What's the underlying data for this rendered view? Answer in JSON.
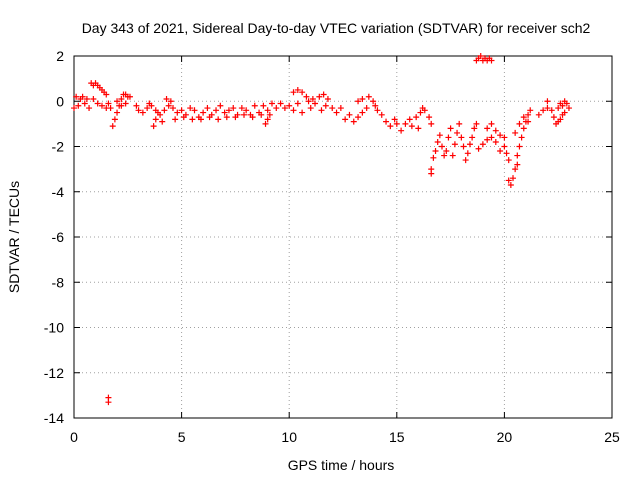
{
  "chart_data": {
    "type": "scatter",
    "title": "Day 343 of 2021, Sidereal Day-to-day VTEC variation (SDTVAR) for receiver sch2",
    "xlabel": "GPS time / hours",
    "ylabel": "SDTVAR / TECUs",
    "xlim": [
      0,
      25
    ],
    "ylim": [
      -14,
      2
    ],
    "xticks": [
      0,
      5,
      10,
      15,
      20,
      25
    ],
    "xtick_labels": [
      "0",
      "5",
      "10",
      "15",
      "20",
      "25"
    ],
    "yticks": [
      2,
      0,
      -2,
      -4,
      -6,
      -8,
      -10,
      -12,
      -14
    ],
    "ytick_labels": [
      "2",
      "0",
      "-2",
      "-4",
      "-6",
      "-8",
      "-10",
      "-12",
      "-14"
    ],
    "grid": true,
    "legend": "none",
    "series": [
      {
        "name": "SDTVAR",
        "marker": "plus",
        "color": "#ff0000",
        "points": [
          [
            0.0,
            -0.3
          ],
          [
            0.1,
            0.2
          ],
          [
            0.2,
            -0.2
          ],
          [
            0.3,
            0.1
          ],
          [
            0.4,
            0.2
          ],
          [
            0.5,
            -0.1
          ],
          [
            0.6,
            0.1
          ],
          [
            0.7,
            -0.3
          ],
          [
            0.8,
            0.8
          ],
          [
            0.9,
            0.7
          ],
          [
            1.0,
            0.8
          ],
          [
            1.1,
            0.7
          ],
          [
            1.2,
            0.6
          ],
          [
            1.3,
            0.5
          ],
          [
            1.4,
            0.4
          ],
          [
            1.5,
            0.3
          ],
          [
            0.9,
            0.1
          ],
          [
            1.1,
            -0.1
          ],
          [
            1.3,
            -0.2
          ],
          [
            1.5,
            -0.3
          ],
          [
            1.6,
            -0.1
          ],
          [
            1.7,
            -0.3
          ],
          [
            1.8,
            -1.1
          ],
          [
            1.9,
            -0.8
          ],
          [
            2.0,
            -0.5
          ],
          [
            2.1,
            -0.2
          ],
          [
            2.2,
            0.1
          ],
          [
            2.3,
            0.3
          ],
          [
            2.4,
            0.3
          ],
          [
            2.5,
            0.2
          ],
          [
            2.6,
            0.2
          ],
          [
            2.0,
            0.0
          ],
          [
            2.2,
            -0.2
          ],
          [
            2.4,
            -0.1
          ],
          [
            1.6,
            -13.1
          ],
          [
            1.6,
            -13.3
          ],
          [
            2.9,
            -0.2
          ],
          [
            3.0,
            -0.4
          ],
          [
            3.2,
            -0.5
          ],
          [
            3.4,
            -0.3
          ],
          [
            3.5,
            -0.1
          ],
          [
            3.6,
            -0.2
          ],
          [
            3.8,
            -0.4
          ],
          [
            3.7,
            -1.1
          ],
          [
            3.8,
            -0.8
          ],
          [
            3.9,
            -0.5
          ],
          [
            4.0,
            -0.6
          ],
          [
            4.1,
            -0.9
          ],
          [
            4.2,
            -0.4
          ],
          [
            4.3,
            0.1
          ],
          [
            4.4,
            -0.2
          ],
          [
            4.5,
            0.0
          ],
          [
            4.6,
            -0.3
          ],
          [
            4.8,
            -0.5
          ],
          [
            5.0,
            -0.4
          ],
          [
            5.2,
            -0.6
          ],
          [
            5.4,
            -0.3
          ],
          [
            5.6,
            -0.4
          ],
          [
            5.8,
            -0.7
          ],
          [
            6.0,
            -0.5
          ],
          [
            6.2,
            -0.3
          ],
          [
            6.4,
            -0.6
          ],
          [
            6.6,
            -0.4
          ],
          [
            4.7,
            -0.8
          ],
          [
            5.1,
            -0.7
          ],
          [
            5.5,
            -0.8
          ],
          [
            5.9,
            -0.8
          ],
          [
            6.3,
            -0.7
          ],
          [
            6.7,
            -0.8
          ],
          [
            6.8,
            -0.2
          ],
          [
            7.0,
            -0.5
          ],
          [
            7.2,
            -0.4
          ],
          [
            7.4,
            -0.3
          ],
          [
            7.6,
            -0.6
          ],
          [
            7.8,
            -0.3
          ],
          [
            8.0,
            -0.4
          ],
          [
            8.2,
            -0.6
          ],
          [
            8.4,
            -0.2
          ],
          [
            8.6,
            -0.5
          ],
          [
            8.8,
            -0.2
          ],
          [
            9.0,
            -0.4
          ],
          [
            9.2,
            -0.1
          ],
          [
            9.4,
            -0.3
          ],
          [
            7.1,
            -0.7
          ],
          [
            7.5,
            -0.7
          ],
          [
            7.9,
            -0.6
          ],
          [
            8.3,
            -0.7
          ],
          [
            8.7,
            -0.6
          ],
          [
            9.1,
            -0.6
          ],
          [
            8.9,
            -1.0
          ],
          [
            9.0,
            -0.8
          ],
          [
            9.6,
            -0.1
          ],
          [
            9.8,
            -0.3
          ],
          [
            10.0,
            -0.2
          ],
          [
            10.2,
            -0.4
          ],
          [
            10.4,
            -0.1
          ],
          [
            10.6,
            -0.5
          ],
          [
            10.2,
            0.4
          ],
          [
            10.4,
            0.5
          ],
          [
            10.6,
            0.4
          ],
          [
            10.8,
            0.2
          ],
          [
            10.9,
            0.0
          ],
          [
            11.0,
            -0.3
          ],
          [
            11.1,
            0.1
          ],
          [
            11.2,
            -0.1
          ],
          [
            11.4,
            0.2
          ],
          [
            11.6,
            0.3
          ],
          [
            11.8,
            0.1
          ],
          [
            11.5,
            -0.4
          ],
          [
            11.7,
            -0.2
          ],
          [
            12.0,
            -0.3
          ],
          [
            12.2,
            -0.5
          ],
          [
            12.4,
            -0.3
          ],
          [
            12.6,
            -0.8
          ],
          [
            12.8,
            -0.6
          ],
          [
            13.0,
            -0.9
          ],
          [
            13.2,
            -0.7
          ],
          [
            13.4,
            -0.5
          ],
          [
            13.6,
            -0.3
          ],
          [
            13.2,
            0.0
          ],
          [
            13.4,
            0.1
          ],
          [
            13.7,
            0.2
          ],
          [
            13.9,
            0.0
          ],
          [
            14.0,
            -0.2
          ],
          [
            14.1,
            -0.4
          ],
          [
            14.3,
            -0.6
          ],
          [
            14.5,
            -0.9
          ],
          [
            14.7,
            -1.1
          ],
          [
            14.9,
            -0.8
          ],
          [
            15.0,
            -1.0
          ],
          [
            15.2,
            -1.3
          ],
          [
            15.4,
            -1.0
          ],
          [
            15.6,
            -0.8
          ],
          [
            15.7,
            -1.1
          ],
          [
            15.9,
            -0.7
          ],
          [
            16.0,
            -1.2
          ],
          [
            16.1,
            -0.5
          ],
          [
            16.2,
            -0.3
          ],
          [
            16.3,
            -0.4
          ],
          [
            16.5,
            -0.7
          ],
          [
            16.6,
            -1.0
          ],
          [
            16.6,
            -3.2
          ],
          [
            16.6,
            -3.0
          ],
          [
            16.7,
            -2.5
          ],
          [
            16.8,
            -2.2
          ],
          [
            16.9,
            -1.8
          ],
          [
            17.0,
            -1.5
          ],
          [
            17.1,
            -2.0
          ],
          [
            17.2,
            -2.4
          ],
          [
            17.3,
            -2.2
          ],
          [
            17.4,
            -1.6
          ],
          [
            17.5,
            -1.2
          ],
          [
            17.6,
            -2.4
          ],
          [
            17.7,
            -1.9
          ],
          [
            17.8,
            -1.4
          ],
          [
            17.9,
            -1.0
          ],
          [
            18.0,
            -1.6
          ],
          [
            18.1,
            -2.0
          ],
          [
            18.2,
            -2.6
          ],
          [
            18.3,
            -2.3
          ],
          [
            18.4,
            -1.9
          ],
          [
            18.5,
            -1.6
          ],
          [
            18.6,
            -1.2
          ],
          [
            18.7,
            -1.0
          ],
          [
            18.7,
            1.8
          ],
          [
            18.8,
            1.9
          ],
          [
            18.9,
            2.0
          ],
          [
            19.0,
            1.8
          ],
          [
            19.1,
            1.9
          ],
          [
            19.2,
            1.8
          ],
          [
            19.3,
            1.9
          ],
          [
            19.4,
            1.8
          ],
          [
            18.8,
            -2.1
          ],
          [
            19.0,
            -1.9
          ],
          [
            19.2,
            -1.7
          ],
          [
            19.4,
            -1.6
          ],
          [
            19.6,
            -1.8
          ],
          [
            19.8,
            -2.2
          ],
          [
            19.2,
            -1.2
          ],
          [
            19.4,
            -1.0
          ],
          [
            19.6,
            -1.3
          ],
          [
            19.8,
            -1.5
          ],
          [
            20.0,
            -1.6
          ],
          [
            20.0,
            -2.0
          ],
          [
            20.1,
            -2.3
          ],
          [
            20.2,
            -2.6
          ],
          [
            20.2,
            -3.5
          ],
          [
            20.3,
            -3.7
          ],
          [
            20.4,
            -3.4
          ],
          [
            20.5,
            -3.0
          ],
          [
            20.6,
            -2.8
          ],
          [
            20.6,
            -2.4
          ],
          [
            20.7,
            -2.0
          ],
          [
            20.8,
            -1.6
          ],
          [
            20.9,
            -1.2
          ],
          [
            21.0,
            -0.9
          ],
          [
            21.1,
            -0.6
          ],
          [
            21.2,
            -0.4
          ],
          [
            20.5,
            -1.4
          ],
          [
            20.7,
            -1.0
          ],
          [
            20.9,
            -0.7
          ],
          [
            21.1,
            -0.9
          ],
          [
            21.6,
            -0.6
          ],
          [
            21.8,
            -0.4
          ],
          [
            22.0,
            -0.3
          ],
          [
            22.0,
            0.0
          ],
          [
            22.2,
            -0.4
          ],
          [
            22.3,
            -0.7
          ],
          [
            22.4,
            -1.0
          ],
          [
            22.5,
            -0.9
          ],
          [
            22.6,
            -0.8
          ],
          [
            22.5,
            -0.3
          ],
          [
            22.6,
            -0.1
          ],
          [
            22.7,
            -0.2
          ],
          [
            22.8,
            0.0
          ],
          [
            22.8,
            -0.5
          ],
          [
            22.9,
            -0.1
          ],
          [
            23.0,
            -0.3
          ],
          [
            22.7,
            -0.6
          ]
        ]
      }
    ]
  }
}
